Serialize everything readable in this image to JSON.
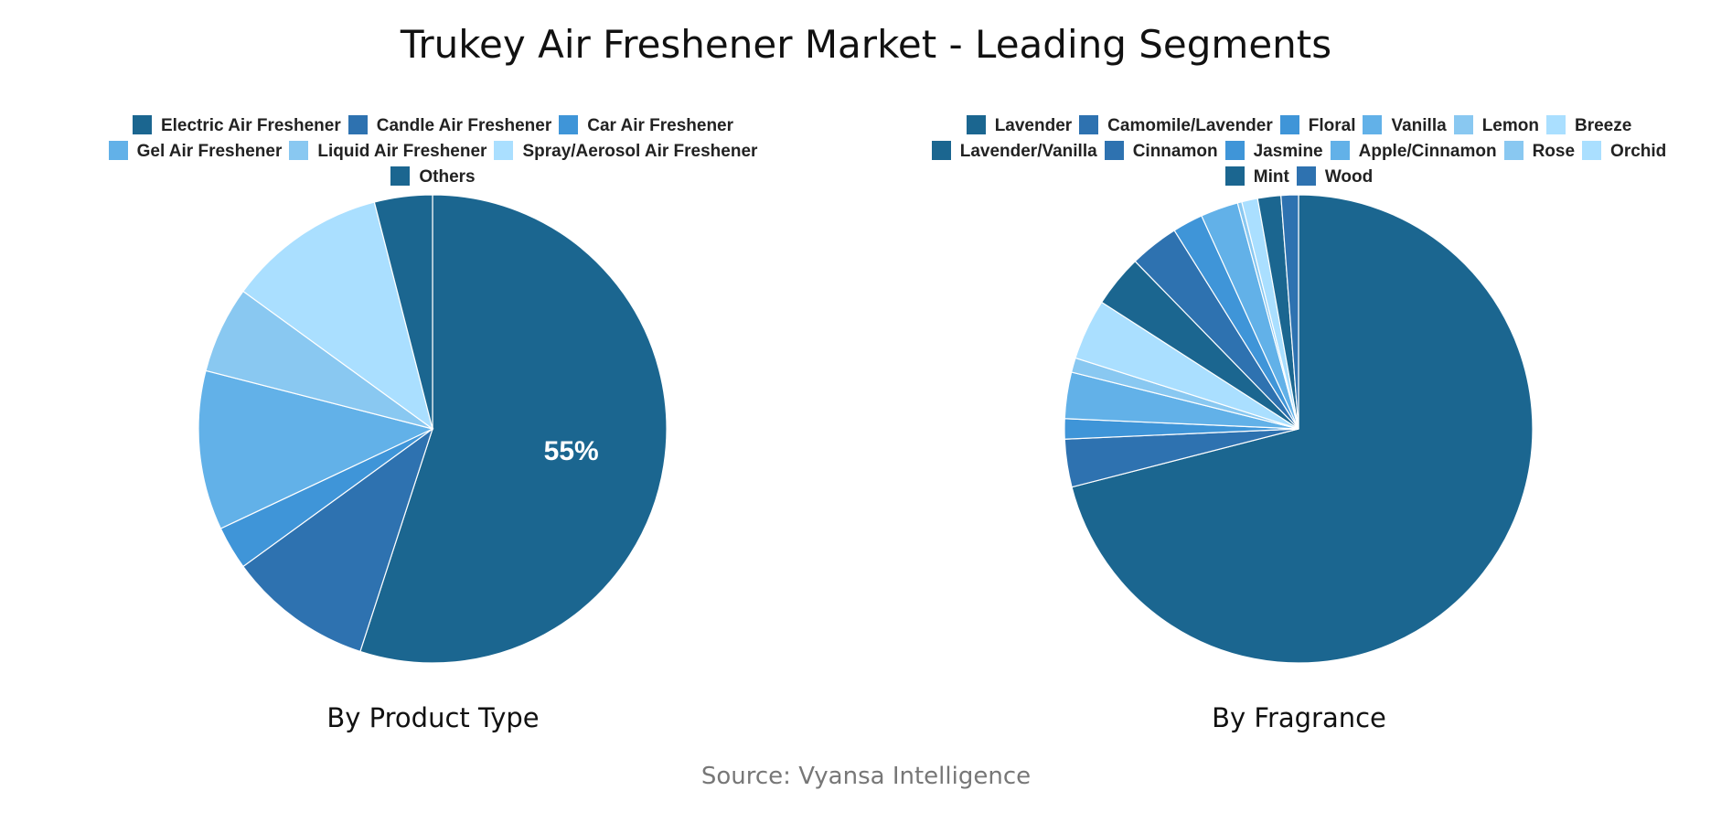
{
  "title": "Trukey Air Freshener Market - Leading Segments",
  "source": "Source: Vyansa Intelligence",
  "colors": [
    "#1b6690",
    "#2e72b0",
    "#3f95d8",
    "#62b1e8",
    "#89c8f1",
    "#aadfff"
  ],
  "chart_data": [
    {
      "type": "pie",
      "title": "By Product Type",
      "categories": [
        "Electric Air Freshener",
        "Candle Air Freshener",
        "Car Air Freshener",
        "Gel Air Freshener",
        "Liquid Air Freshener",
        "Spray/Aerosol Air Freshener",
        "Others"
      ],
      "values": [
        55,
        10,
        3,
        11,
        6,
        11,
        4
      ],
      "data_labels": [
        "55%",
        "",
        "",
        "",
        "",
        "",
        ""
      ],
      "legend_rows": [
        [
          0,
          1,
          2
        ],
        [
          3,
          4,
          5
        ],
        [
          6
        ]
      ],
      "legend": "top"
    },
    {
      "type": "pie",
      "title": "By Fragrance",
      "categories": [
        "Lavender",
        "Camomile/Lavender",
        "Floral",
        "Vanilla",
        "Lemon",
        "Breeze",
        "Lavender/Vanilla",
        "Cinnamon",
        "Jasmine",
        "Apple/Cinnamon",
        "Rose",
        "Orchid",
        "Mint",
        "Wood"
      ],
      "values": [
        71,
        3.3,
        1.4,
        3.2,
        1.0,
        4.2,
        3.6,
        3.4,
        2.1,
        2.6,
        0.3,
        1.1,
        1.6,
        1.2
      ],
      "data_labels": [
        "",
        "",
        "",
        "",
        "",
        "",
        "",
        "",
        "",
        "",
        "",
        "",
        "",
        ""
      ],
      "legend_rows": [
        [
          0,
          1,
          2,
          3,
          4,
          5
        ],
        [
          6,
          7,
          8,
          9,
          10,
          11
        ],
        [
          12,
          13
        ]
      ],
      "legend": "top"
    }
  ]
}
